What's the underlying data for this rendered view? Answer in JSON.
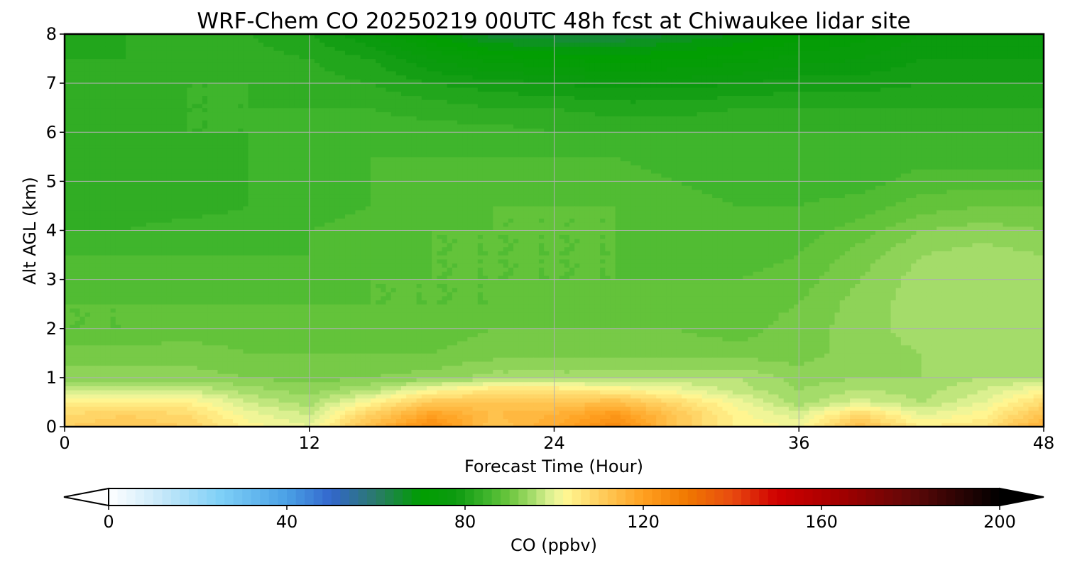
{
  "chart_data": {
    "type": "heatmap",
    "title": "WRF-Chem CO  20250219 00UTC 48h fcst at Chiwaukee lidar site",
    "xlabel": "Forecast Time (Hour)",
    "ylabel": "Alt AGL (km)",
    "xlim": [
      0,
      48
    ],
    "ylim": [
      0,
      8
    ],
    "xticks": [
      0,
      12,
      24,
      36,
      48
    ],
    "yticks": [
      0,
      1,
      2,
      3,
      4,
      5,
      6,
      7,
      8
    ],
    "grid": true,
    "x": [
      0,
      3,
      6,
      9,
      12,
      15,
      18,
      21,
      24,
      27,
      30,
      33,
      36,
      39,
      42,
      45,
      48
    ],
    "y": [
      0,
      0.25,
      0.5,
      0.75,
      1,
      1.5,
      2,
      2.5,
      3,
      3.5,
      4,
      4.5,
      5,
      5.5,
      6,
      6.5,
      7,
      7.5,
      8
    ],
    "z": [
      [
        110,
        112,
        110,
        103,
        100,
        114,
        125,
        112,
        118,
        126,
        112,
        103,
        102,
        114,
        104,
        106,
        117
      ],
      [
        108,
        110,
        108,
        101,
        98,
        110,
        120,
        114,
        116,
        122,
        112,
        103,
        99,
        109,
        100,
        103,
        113
      ],
      [
        104,
        105,
        104,
        98,
        95,
        103,
        112,
        112,
        112,
        114,
        108,
        101,
        95,
        99,
        96,
        100,
        108
      ],
      [
        98,
        99,
        98,
        95,
        93,
        96,
        102,
        106,
        106,
        104,
        101,
        97,
        94,
        96,
        95,
        98,
        102
      ],
      [
        93,
        93,
        93,
        92,
        91,
        92,
        93,
        95,
        95,
        95,
        96,
        96,
        93,
        94,
        94,
        96,
        96
      ],
      [
        91,
        91,
        91,
        90,
        90,
        90,
        90,
        91,
        91,
        91,
        91,
        91,
        91,
        93,
        94,
        95,
        95
      ],
      [
        88,
        88,
        89,
        89,
        89,
        89,
        89,
        90,
        90,
        90,
        90,
        89,
        91,
        93,
        95,
        96,
        95
      ],
      [
        88,
        88,
        88,
        88,
        88,
        88,
        88,
        88,
        89,
        89,
        89,
        89,
        90,
        93,
        95,
        96,
        95
      ],
      [
        87,
        87,
        87,
        87,
        87,
        88,
        88,
        88,
        88,
        88,
        88,
        88,
        89,
        92,
        95,
        96,
        95
      ],
      [
        86,
        86,
        86,
        86,
        86,
        87,
        88,
        88,
        88,
        88,
        87,
        87,
        88,
        91,
        94,
        95,
        94
      ],
      [
        84,
        84,
        85,
        85,
        86,
        87,
        88,
        88,
        88,
        88,
        87,
        86,
        87,
        89,
        92,
        93,
        92
      ],
      [
        83,
        83,
        83,
        84,
        85,
        86,
        87,
        88,
        88,
        88,
        87,
        86,
        86,
        87,
        89,
        90,
        90
      ],
      [
        82,
        82,
        83,
        84,
        85,
        86,
        87,
        87,
        88,
        87,
        86,
        85,
        85,
        85,
        87,
        87,
        87
      ],
      [
        83,
        82,
        83,
        84,
        85,
        86,
        86,
        86,
        86,
        86,
        85,
        85,
        85,
        85,
        85,
        85,
        85
      ],
      [
        84,
        83,
        84,
        84,
        85,
        85,
        85,
        85,
        84,
        84,
        84,
        84,
        84,
        84,
        84,
        84,
        84
      ],
      [
        84,
        84,
        84,
        84,
        84,
        84,
        83,
        82,
        82,
        81,
        81,
        82,
        82,
        82,
        82,
        82,
        82
      ],
      [
        83,
        83,
        84,
        84,
        83,
        82,
        80,
        79,
        78,
        77,
        77,
        78,
        79,
        79,
        80,
        80,
        80
      ],
      [
        82,
        82,
        83,
        83,
        82,
        80,
        76,
        73,
        72,
        71,
        72,
        73,
        75,
        76,
        78,
        78,
        78
      ],
      [
        81,
        82,
        82,
        82,
        80,
        76,
        70,
        65,
        64,
        64,
        66,
        68,
        71,
        73,
        76,
        76,
        76
      ]
    ],
    "colorbar": {
      "label": "CO  (ppbv)",
      "min": 0,
      "max": 200,
      "ticks": [
        0,
        40,
        80,
        120,
        160,
        200
      ],
      "extend": "both",
      "colors": [
        {
          "v": 0,
          "c": "#ffffff"
        },
        {
          "v": 10,
          "c": "#d0ecfa"
        },
        {
          "v": 25,
          "c": "#7fd0f7"
        },
        {
          "v": 40,
          "c": "#4aa1e6"
        },
        {
          "v": 50,
          "c": "#3366cc"
        },
        {
          "v": 60,
          "c": "#2a7a6a"
        },
        {
          "v": 70,
          "c": "#009e00"
        },
        {
          "v": 78,
          "c": "#0d9a10"
        },
        {
          "v": 85,
          "c": "#3fb52c"
        },
        {
          "v": 90,
          "c": "#6cc63e"
        },
        {
          "v": 95,
          "c": "#a4dc6a"
        },
        {
          "v": 100,
          "c": "#e9f59a"
        },
        {
          "v": 103,
          "c": "#fff590"
        },
        {
          "v": 110,
          "c": "#ffd060"
        },
        {
          "v": 120,
          "c": "#ffa020"
        },
        {
          "v": 130,
          "c": "#f07800"
        },
        {
          "v": 140,
          "c": "#e84a10"
        },
        {
          "v": 150,
          "c": "#d00000"
        },
        {
          "v": 165,
          "c": "#a00000"
        },
        {
          "v": 180,
          "c": "#600808"
        },
        {
          "v": 200,
          "c": "#000000"
        }
      ]
    }
  }
}
